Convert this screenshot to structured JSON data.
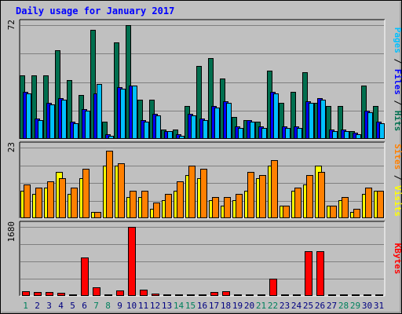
{
  "chart_data": {
    "type": "bar",
    "title": "Daily usage for January 2017",
    "days": [
      "1",
      "2",
      "3",
      "4",
      "5",
      "6",
      "7",
      "8",
      "9",
      "10",
      "11",
      "12",
      "13",
      "14",
      "15",
      "16",
      "17",
      "18",
      "19",
      "20",
      "21",
      "22",
      "23",
      "24",
      "25",
      "26",
      "27",
      "28",
      "29",
      "30",
      "31"
    ],
    "weekend_days": [
      "1",
      "7",
      "8",
      "14",
      "15",
      "21",
      "22",
      "28",
      "29"
    ],
    "colors": {
      "background": "#c0c0c0",
      "hits": "#006f4f",
      "files": "#0000ff",
      "pages": "#00c0ff",
      "visits": "#ffff00",
      "sites": "#ff8000",
      "kbytes": "#ff0000",
      "title": "#0000ff",
      "weekday_label": "#000080",
      "weekend_label": "#00805c"
    },
    "panels": [
      {
        "ymax_label": "72",
        "ymax": 72,
        "legend": [
          {
            "text": "Pages",
            "color": "#00c0ff"
          },
          {
            "text": "Files",
            "color": "#0000ff"
          },
          {
            "text": "Hits",
            "color": "#006f4f"
          }
        ],
        "series": [
          {
            "name": "Hits",
            "values": [
              40,
              40,
              40,
              56,
              37,
              28,
              69,
              11,
              61,
              72,
              25,
              25,
              6,
              6,
              21,
              46,
              51,
              38,
              14,
              12,
              11,
              43,
              23,
              30,
              42,
              23,
              21,
              21,
              5,
              34,
              21
            ]
          },
          {
            "name": "Files",
            "values": [
              30,
              13,
              23,
              26,
              11,
              19,
              29,
              3,
              33,
              34,
              12,
              16,
              5,
              3,
              16,
              13,
              21,
              24,
              8,
              12,
              8,
              30,
              8,
              8,
              24,
              26,
              6,
              6,
              4,
              18,
              11
            ]
          },
          {
            "name": "Pages",
            "values": [
              29,
              12,
              22,
              25,
              10,
              18,
              35,
              2,
              32,
              34,
              11,
              15,
              5,
              2,
              15,
              12,
              20,
              23,
              7,
              11,
              7,
              29,
              7,
              7,
              23,
              25,
              5,
              5,
              3,
              17,
              10
            ]
          }
        ]
      },
      {
        "ymax_label": "23",
        "ymax": 23,
        "legend": [
          {
            "text": "Sites",
            "color": "#ff8000"
          },
          {
            "text": "Visits",
            "color": "#ffff00"
          }
        ],
        "series": [
          {
            "name": "Visits",
            "values": [
              9,
              8,
              10,
              15,
              8,
              13,
              2,
              17,
              17,
              7,
              7,
              3,
              6,
              9,
              14,
              13,
              6,
              4,
              6,
              9,
              13,
              17,
              4,
              9,
              11,
              17,
              4,
              6,
              2,
              8,
              9
            ]
          },
          {
            "name": "Sites",
            "values": [
              11,
              10,
              12,
              13,
              10,
              16,
              2,
              22,
              18,
              9,
              9,
              5,
              8,
              12,
              17,
              16,
              7,
              7,
              8,
              15,
              14,
              19,
              4,
              10,
              14,
              15,
              4,
              7,
              3,
              10,
              9
            ]
          }
        ]
      },
      {
        "ymax_label": "1680",
        "ymax": 1680,
        "legend": [
          {
            "text": "KBytes",
            "color": "#ff0000"
          }
        ],
        "series": [
          {
            "name": "KBytes",
            "values": [
              110,
              100,
              90,
              70,
              30,
              940,
              210,
              30,
              130,
              1680,
              150,
              50,
              40,
              30,
              40,
              40,
              100,
              110,
              30,
              40,
              40,
              420,
              30,
              30,
              1080,
              1080,
              30,
              40,
              30,
              40,
              40
            ]
          }
        ]
      }
    ]
  }
}
